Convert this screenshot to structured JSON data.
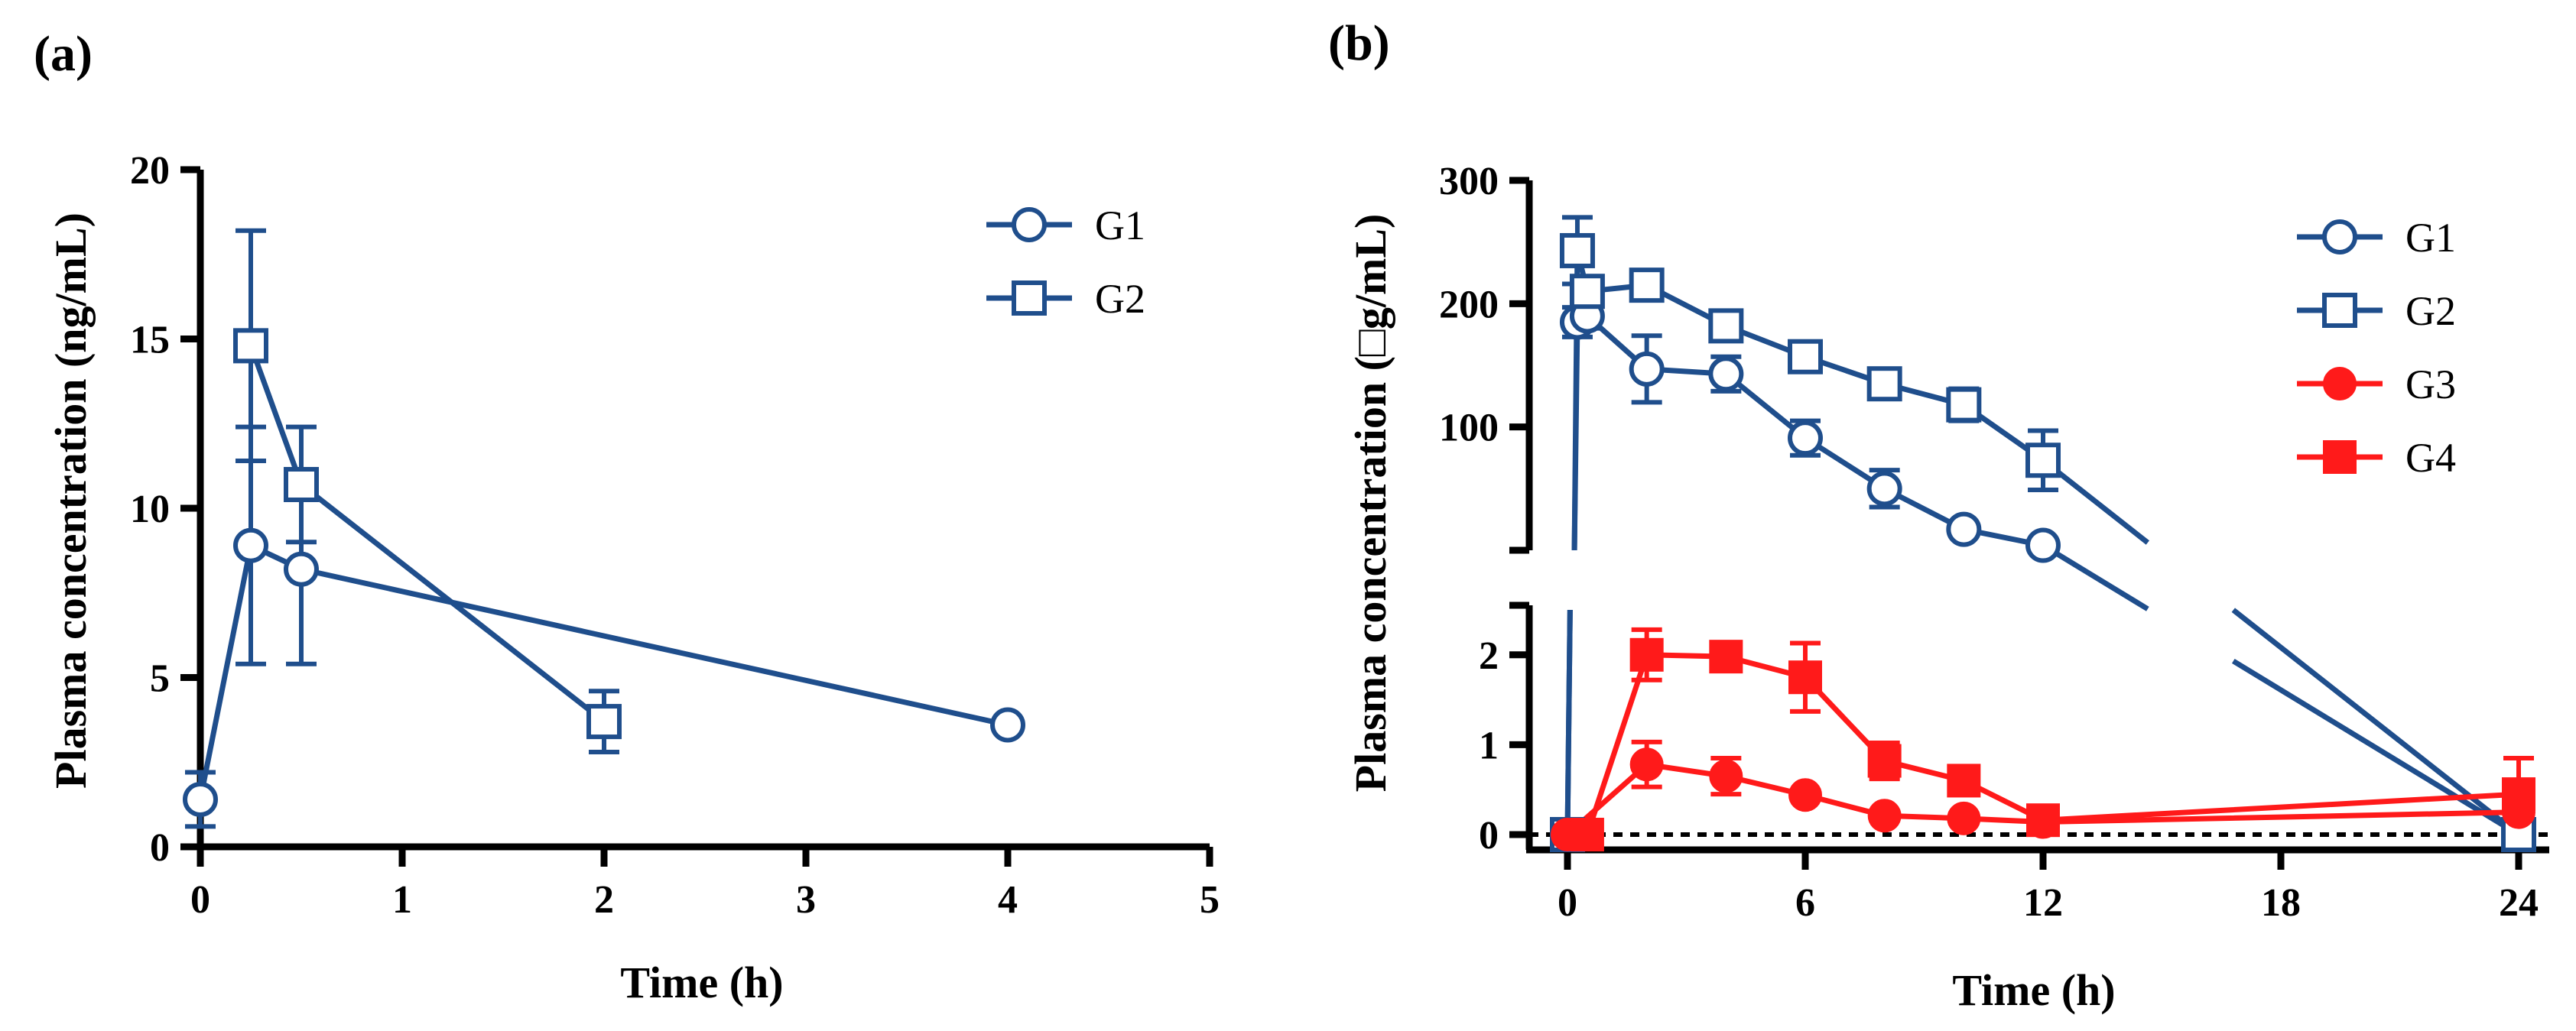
{
  "chart_data": [
    {
      "panel": "(a)",
      "type": "line",
      "xlabel": "Time (h)",
      "ylabel": "Plasma concentration (ng/mL)",
      "xlim": [
        0,
        5
      ],
      "ylim": [
        0,
        20
      ],
      "x_ticks": [
        "0",
        "1",
        "2",
        "3",
        "4",
        "5"
      ],
      "y_ticks": [
        "0",
        "5",
        "10",
        "15",
        "20"
      ],
      "legend_position": "top-right",
      "series": [
        {
          "name": "G1",
          "marker": "circle-open",
          "color": "#1F4E8C",
          "points": [
            {
              "x": 0,
              "y": 1.4,
              "err": 0.8
            },
            {
              "x": 0.25,
              "y": 8.9,
              "err": 3.5
            },
            {
              "x": 0.5,
              "y": 8.2,
              "err": 2.8
            },
            {
              "x": 4,
              "y": 3.6,
              "err": 0
            }
          ]
        },
        {
          "name": "G2",
          "marker": "square-open",
          "color": "#1F4E8C",
          "points": [
            {
              "x": 0.25,
              "y": 14.8,
              "err": 3.4
            },
            {
              "x": 0.5,
              "y": 10.7,
              "err": 1.7
            },
            {
              "x": 2,
              "y": 3.7,
              "err": 0.9
            }
          ]
        }
      ]
    },
    {
      "panel": "(b)",
      "type": "line",
      "xlabel": "Time (h)",
      "ylabel": "Plasma concentration (□g/mL)",
      "xlim": [
        0,
        24
      ],
      "x_ticks": [
        "0",
        "6",
        "12",
        "18",
        "24"
      ],
      "y_axis_broken": true,
      "y_upper_segment": {
        "range": [
          0,
          300
        ],
        "ticks": [
          "100",
          "200",
          "300"
        ]
      },
      "y_lower_segment": {
        "range": [
          0,
          2.5
        ],
        "ticks": [
          "0",
          "1",
          "2"
        ]
      },
      "reference_line": {
        "y": 0,
        "style": "dotted"
      },
      "legend_position": "top-right",
      "series": [
        {
          "name": "G1",
          "marker": "circle-open",
          "color": "#1F4E8C",
          "points": [
            {
              "x": 0,
              "y": 0
            },
            {
              "x": 0.25,
              "y": 185,
              "err": 12
            },
            {
              "x": 0.5,
              "y": 190,
              "err": 10
            },
            {
              "x": 2,
              "y": 147,
              "err": 27
            },
            {
              "x": 4,
              "y": 143,
              "err": 14
            },
            {
              "x": 6,
              "y": 91,
              "err": 14
            },
            {
              "x": 8,
              "y": 50,
              "err": 15
            },
            {
              "x": 10,
              "y": 17,
              "err": 0
            },
            {
              "x": 12,
              "y": 4,
              "err": 0
            },
            {
              "x": 24,
              "y": 0
            }
          ]
        },
        {
          "name": "G2",
          "marker": "square-open",
          "color": "#1F4E8C",
          "points": [
            {
              "x": 0,
              "y": 0
            },
            {
              "x": 0.25,
              "y": 243,
              "err": 27
            },
            {
              "x": 0.5,
              "y": 210,
              "err": 10
            },
            {
              "x": 2,
              "y": 215,
              "err": 6
            },
            {
              "x": 4,
              "y": 182,
              "err": 5
            },
            {
              "x": 6,
              "y": 157,
              "err": 6
            },
            {
              "x": 8,
              "y": 135,
              "err": 11
            },
            {
              "x": 10,
              "y": 118,
              "err": 13
            },
            {
              "x": 12,
              "y": 73,
              "err": 24
            },
            {
              "x": 24,
              "y": 0
            }
          ]
        },
        {
          "name": "G3",
          "marker": "circle-filled",
          "color": "#FF1A1A",
          "points": [
            {
              "x": 0,
              "y": 0
            },
            {
              "x": 2,
              "y": 0.78,
              "err": 0.25
            },
            {
              "x": 4,
              "y": 0.65,
              "err": 0.2
            },
            {
              "x": 6,
              "y": 0.44,
              "err": 0.05
            },
            {
              "x": 8,
              "y": 0.21,
              "err": 0.03
            },
            {
              "x": 10,
              "y": 0.18,
              "err": 0.03
            },
            {
              "x": 12,
              "y": 0.14,
              "err": 0.03
            },
            {
              "x": 24,
              "y": 0.25,
              "err": 0
            }
          ]
        },
        {
          "name": "G4",
          "marker": "square-filled",
          "color": "#FF1A1A",
          "points": [
            {
              "x": 0.5,
              "y": 0
            },
            {
              "x": 2,
              "y": 2.0,
              "err": 0.28
            },
            {
              "x": 4,
              "y": 1.98,
              "err": 0.04
            },
            {
              "x": 6,
              "y": 1.75,
              "err": 0.38
            },
            {
              "x": 8,
              "y": 0.82,
              "err": 0.2
            },
            {
              "x": 10,
              "y": 0.6,
              "err": 0.06
            },
            {
              "x": 12,
              "y": 0.16,
              "err": 0.05
            },
            {
              "x": 24,
              "y": 0.45,
              "err": 0.4
            }
          ]
        }
      ]
    }
  ]
}
